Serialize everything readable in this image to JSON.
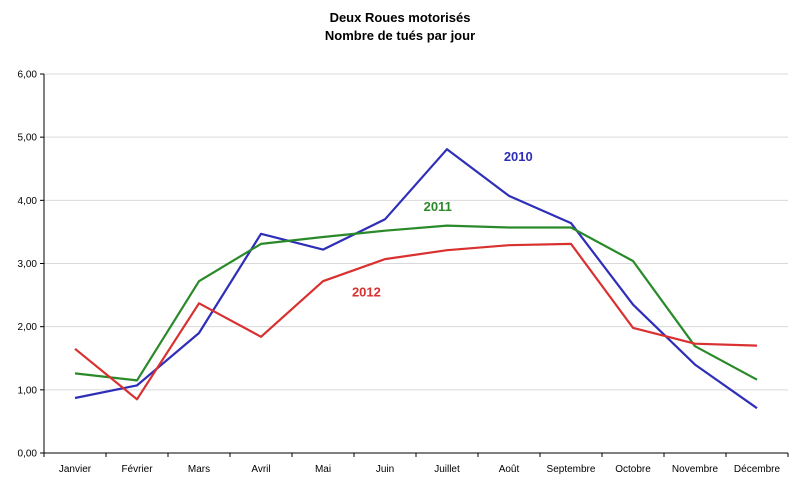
{
  "chart_data": {
    "type": "line",
    "title": "Deux Roues motorisés",
    "subtitle": "Nombre de tués par jour",
    "xlabel": "",
    "ylabel": "",
    "categories": [
      "Janvier",
      "Février",
      "Mars",
      "Avril",
      "Mai",
      "Juin",
      "Juillet",
      "Août",
      "Septembre",
      "Octobre",
      "Novembre",
      "Décembre"
    ],
    "ylim": [
      0,
      6
    ],
    "yticks": [
      "0,00",
      "1,00",
      "2,00",
      "3,00",
      "4,00",
      "5,00",
      "6,00"
    ],
    "grid": true,
    "legend": "inline labels",
    "series": [
      {
        "name": "2010",
        "color": "#2e2eb8",
        "values": [
          0.87,
          1.07,
          1.9,
          3.47,
          3.22,
          3.7,
          4.81,
          4.07,
          3.64,
          2.35,
          1.4,
          0.71
        ]
      },
      {
        "name": "2011",
        "color": "#2a8a2a",
        "values": [
          1.26,
          1.15,
          2.72,
          3.31,
          3.42,
          3.52,
          3.6,
          3.57,
          3.57,
          3.04,
          1.69,
          1.16
        ]
      },
      {
        "name": "2012",
        "color": "#d93030",
        "values": [
          1.65,
          0.85,
          2.37,
          1.84,
          2.72,
          3.07,
          3.21,
          3.29,
          3.31,
          1.98,
          1.73,
          1.7
        ]
      }
    ]
  }
}
